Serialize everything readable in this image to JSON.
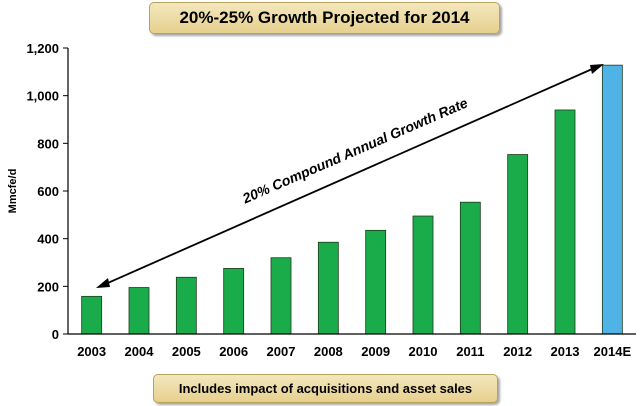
{
  "chart_data": {
    "type": "bar",
    "title": "20%-25% Growth Projected for 2014",
    "ylabel": "Mmcfe/d",
    "xlabel": "",
    "ylim": [
      0,
      1200
    ],
    "yticks": [
      "0",
      "200",
      "400",
      "600",
      "800",
      "1,000",
      "1,200"
    ],
    "categories": [
      "2003",
      "2004",
      "2005",
      "2006",
      "2007",
      "2008",
      "2009",
      "2010",
      "2011",
      "2012",
      "2013",
      "2014E"
    ],
    "values": [
      158,
      195,
      238,
      275,
      320,
      385,
      435,
      495,
      553,
      753,
      940,
      1128
    ],
    "colors": {
      "actual": "#1aab4b",
      "estimate": "#4fb3e6",
      "edge": "#1f3a1f"
    },
    "annotation": "20% Compound Annual Growth Rate",
    "grid": false,
    "legend": "none"
  },
  "footer": {
    "note": "Includes impact of acquisitions and asset sales"
  }
}
